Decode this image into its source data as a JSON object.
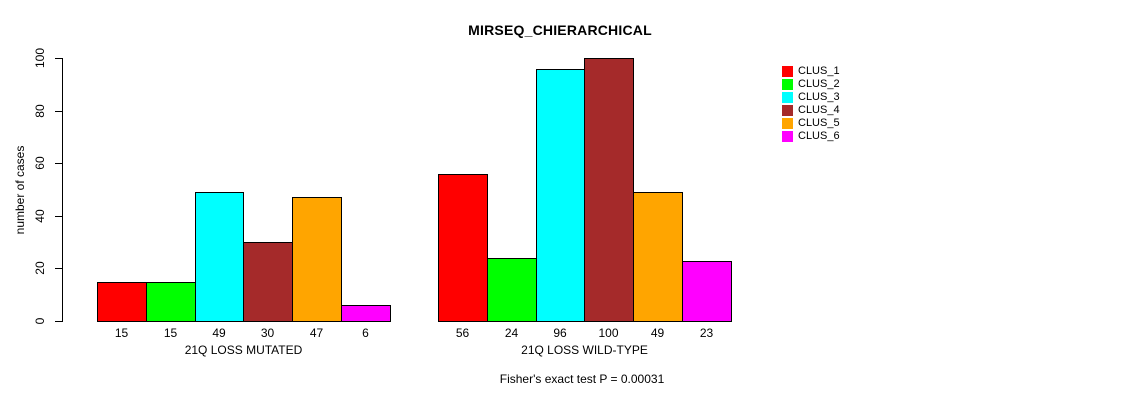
{
  "chart_data": {
    "type": "bar",
    "title": "MIRSEQ_CHIERARCHICAL",
    "ylabel": "number of cases",
    "xlabel": "",
    "ylim": [
      0,
      100
    ],
    "y_ticks": [
      0,
      20,
      40,
      60,
      80,
      100
    ],
    "grid": false,
    "legend_position": "right",
    "groups": [
      "21Q LOSS MUTATED",
      "21Q LOSS WILD-TYPE"
    ],
    "series": [
      {
        "name": "CLUS_1",
        "color": "#FF0000",
        "values": [
          15,
          56
        ]
      },
      {
        "name": "CLUS_2",
        "color": "#00FF00",
        "values": [
          15,
          24
        ]
      },
      {
        "name": "CLUS_3",
        "color": "#00FFFF",
        "values": [
          49,
          96
        ]
      },
      {
        "name": "CLUS_4",
        "color": "#A52A2A",
        "values": [
          30,
          100
        ]
      },
      {
        "name": "CLUS_5",
        "color": "#FFA500",
        "values": [
          47,
          49
        ]
      },
      {
        "name": "CLUS_6",
        "color": "#FF00FF",
        "values": [
          6,
          23
        ]
      }
    ],
    "bar_value_labels": [
      [
        15,
        15,
        49,
        30,
        47,
        6
      ],
      [
        56,
        24,
        96,
        100,
        49,
        23
      ]
    ],
    "annotation": "Fisher's exact test P = 0.00031",
    "colors": {
      "background": "#FFFFFF",
      "axis": "#000000",
      "text": "#000000"
    }
  }
}
